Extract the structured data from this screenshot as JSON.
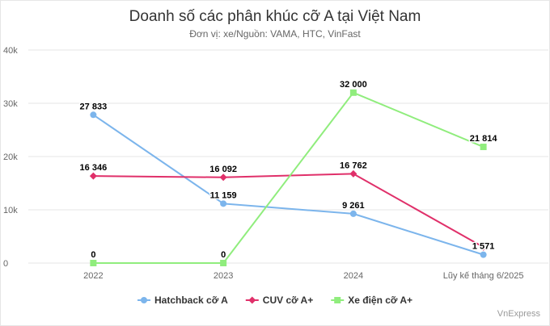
{
  "chart_data": {
    "type": "line",
    "title": "Doanh số các phân khúc cỡ A tại Việt Nam",
    "subtitle": "Đơn vị: xe/Nguồn: VAMA, HTC, VinFast",
    "categories": [
      "2022",
      "2023",
      "2024",
      "Lũy kế tháng 6/2025"
    ],
    "y_ticks": [
      "0",
      "10k",
      "20k",
      "30k",
      "40k"
    ],
    "ylim": [
      0,
      40000
    ],
    "grid": true,
    "legend_position": "bottom",
    "series": [
      {
        "name": "Hatchback cỡ A",
        "color": "#7cb5ec",
        "marker": "circle",
        "values": [
          27833,
          11159,
          9261,
          1571
        ],
        "labels": [
          "27 833",
          "11 159",
          "9 261",
          "1 571"
        ]
      },
      {
        "name": "CUV cỡ A+",
        "color": "#e0306a",
        "marker": "diamond",
        "values": [
          16346,
          16092,
          16762,
          3000
        ],
        "labels": [
          "16 346",
          "16 092",
          "16 762",
          null
        ]
      },
      {
        "name": "Xe điện cỡ A+",
        "color": "#90ed7d",
        "marker": "square",
        "values": [
          0,
          0,
          32000,
          21814
        ],
        "labels": [
          "0",
          "0",
          "32 000",
          "21 814"
        ]
      }
    ]
  },
  "credit": "VnExpress"
}
